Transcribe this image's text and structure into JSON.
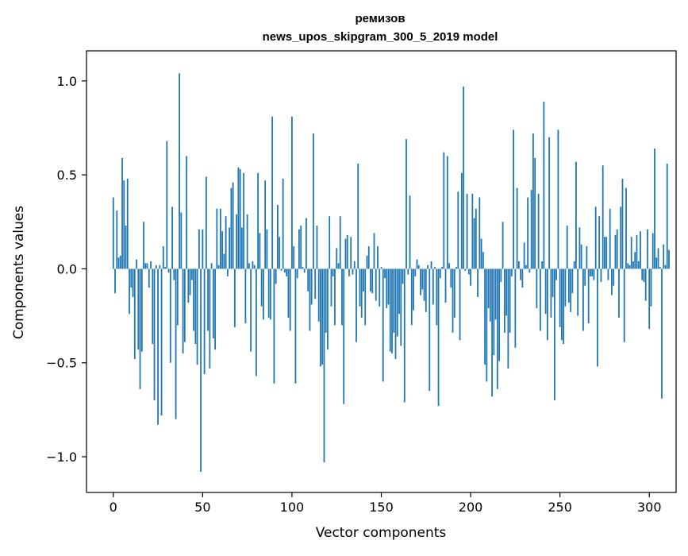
{
  "chart_data": {
    "type": "bar",
    "title": "ремизов",
    "subtitle": "news_upos_skipgram_300_5_2019 model",
    "xlabel": "Vector components",
    "ylabel": "Components values",
    "xlim": [
      -15,
      315
    ],
    "ylim": [
      -1.19,
      1.16
    ],
    "xticks": [
      0,
      50,
      100,
      150,
      200,
      250,
      300
    ],
    "yticks": [
      -1.0,
      -0.5,
      0.0,
      0.5,
      1.0
    ],
    "xtick_labels": [
      "0",
      "50",
      "100",
      "150",
      "200",
      "250",
      "300"
    ],
    "ytick_labels": [
      "−1.0",
      "−0.5",
      "0.0",
      "0.5",
      "1.0"
    ],
    "grid": false,
    "bar_color": "#1f77b4",
    "values": [
      0.38,
      -0.13,
      0.31,
      0.06,
      0.07,
      0.59,
      0.47,
      0.23,
      0.48,
      -0.24,
      -0.1,
      -0.15,
      -0.48,
      0.05,
      -0.43,
      -0.64,
      -0.44,
      0.25,
      0.03,
      0.03,
      -0.1,
      0.04,
      -0.4,
      -0.7,
      0.02,
      -0.83,
      0.02,
      -0.78,
      0.12,
      0.01,
      0.68,
      -0.02,
      -0.5,
      0.33,
      -0.06,
      -0.8,
      -0.3,
      1.04,
      0.3,
      -0.45,
      -0.39,
      0.6,
      -0.18,
      -0.14,
      -0.06,
      -0.33,
      -0.4,
      -0.51,
      0.21,
      -1.08,
      0.21,
      -0.56,
      0.49,
      -0.33,
      -0.53,
      0.03,
      -0.37,
      -0.43,
      0.32,
      0.02,
      0.32,
      0.2,
      0.08,
      0.28,
      -0.04,
      0.22,
      0.43,
      0.46,
      -0.31,
      0.29,
      0.54,
      0.53,
      0.22,
      0.51,
      -0.29,
      0.29,
      0.03,
      -0.44,
      0.04,
      0.02,
      -0.57,
      0.51,
      0.19,
      -0.2,
      -0.27,
      0.47,
      0.21,
      -0.26,
      -0.27,
      0.81,
      -0.61,
      -0.08,
      0.34,
      0.17,
      -0.01,
      0.48,
      -0.02,
      -0.04,
      -0.26,
      -0.33,
      0.81,
      0.12,
      -0.61,
      -0.05,
      0.21,
      0.23,
      0.01,
      -0.02,
      0.27,
      -0.12,
      -0.33,
      -0.19,
      0.72,
      -0.16,
      0.23,
      -0.28,
      -0.52,
      -0.51,
      -1.03,
      -0.34,
      -0.43,
      0.28,
      -0.2,
      -0.04,
      -0.3,
      0.11,
      0.03,
      0.28,
      -0.3,
      -0.72,
      0.16,
      0.18,
      -0.04,
      0.17,
      -0.03,
      0.04,
      -0.39,
      0.56,
      -0.2,
      -0.26,
      -0.12,
      -0.3,
      0.07,
      0.12,
      -0.12,
      -0.13,
      0.19,
      -0.17,
      0.12,
      -0.2,
      0.01,
      -0.6,
      -0.05,
      -0.21,
      -0.19,
      -0.44,
      -0.45,
      -0.34,
      -0.48,
      -0.36,
      -0.24,
      -0.41,
      -0.08,
      -0.71,
      0.69,
      -0.03,
      0.39,
      -0.3,
      -0.22,
      -0.04,
      0.05,
      0.02,
      -0.14,
      -0.11,
      -0.17,
      -0.23,
      0.02,
      -0.65,
      0.04,
      -0.19,
      0.01,
      -0.3,
      -0.73,
      -0.05,
      0.01,
      0.62,
      -0.18,
      0.6,
      0.03,
      -0.1,
      -0.34,
      -0.26,
      0.01,
      0.41,
      -0.38,
      0.51,
      0.97,
      -0.01,
      0.4,
      -0.03,
      -0.09,
      0.4,
      0.27,
      0.32,
      -0.15,
      0.38,
      0.16,
      0.09,
      -0.51,
      -0.6,
      -0.21,
      -0.28,
      -0.68,
      -0.46,
      -0.27,
      -0.64,
      -0.49,
      -0.07,
      0.25,
      -0.34,
      -0.25,
      -0.53,
      -0.34,
      -0.04,
      0.74,
      -0.42,
      0.43,
      0.04,
      -0.06,
      -0.1,
      0.14,
      0.02,
      0.38,
      -0.02,
      0.42,
      0.72,
      0.59,
      -0.21,
      0.4,
      -0.33,
      0.04,
      0.89,
      -0.24,
      -0.38,
      0.7,
      -0.26,
      -0.15,
      -0.7,
      -0.06,
      0.74,
      -0.31,
      -0.38,
      -0.4,
      -0.2,
      0.23,
      -0.18,
      -0.23,
      -0.13,
      0.04,
      0.57,
      -0.25,
      0.22,
      0.13,
      -0.33,
      -0.09,
      0.12,
      -0.29,
      -0.04,
      -0.04,
      -0.06,
      0.33,
      -0.52,
      0.28,
      -0.07,
      0.55,
      0.17,
      0.17,
      -0.06,
      0.32,
      -0.14,
      -0.09,
      0.18,
      0.21,
      -0.26,
      0.33,
      0.48,
      -0.39,
      0.43,
      0.03,
      0.02,
      0.17,
      0.04,
      0.09,
      0.18,
      0.04,
      0.2,
      -0.06,
      -0.07,
      -0.17,
      0.21,
      -0.32,
      -0.2,
      0.19,
      0.64,
      0.06,
      0.11,
      0.01,
      -0.69,
      0.13,
      0.02,
      0.56,
      0.1
    ]
  }
}
